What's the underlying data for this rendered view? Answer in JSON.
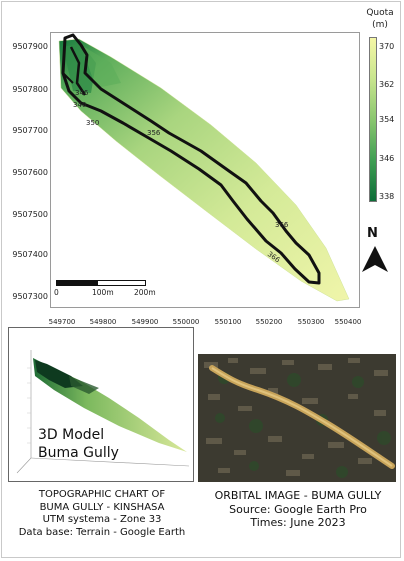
{
  "main_map": {
    "y_ticks": [
      "9507900",
      "9507800",
      "9507700",
      "9507600",
      "9507500",
      "9507400",
      "9507300"
    ],
    "x_ticks": [
      "549700",
      "549800",
      "549900",
      "550000",
      "550100",
      "550200",
      "550300",
      "550400"
    ],
    "contour_labels": [
      "346",
      "346",
      "350",
      "356",
      "366",
      "366"
    ]
  },
  "legend": {
    "title_line1": "Quota",
    "title_line2": "(m)",
    "ticks": [
      "370",
      "362",
      "354",
      "346",
      "338"
    ]
  },
  "north_label": "N",
  "scale": {
    "labels": [
      "0",
      "100m",
      "200m"
    ]
  },
  "model_3d": {
    "title_line1": "3D Model",
    "title_line2": "Buma Gully"
  },
  "captions": {
    "topo": [
      "TOPOGRAPHIC CHART OF",
      "BUMA GULLY - KINSHASA",
      "UTM systema - Zone 33",
      "Data base: Terrain - Google Earth"
    ],
    "orbital": [
      "ORBITAL IMAGE - BUMA GULLY",
      "Source: Google Earth Pro",
      "Times: June 2023"
    ]
  },
  "colors": {
    "elev_low": "#0d6d38",
    "elev_high": "#f5f7a6",
    "gully_outline": "#111111"
  }
}
